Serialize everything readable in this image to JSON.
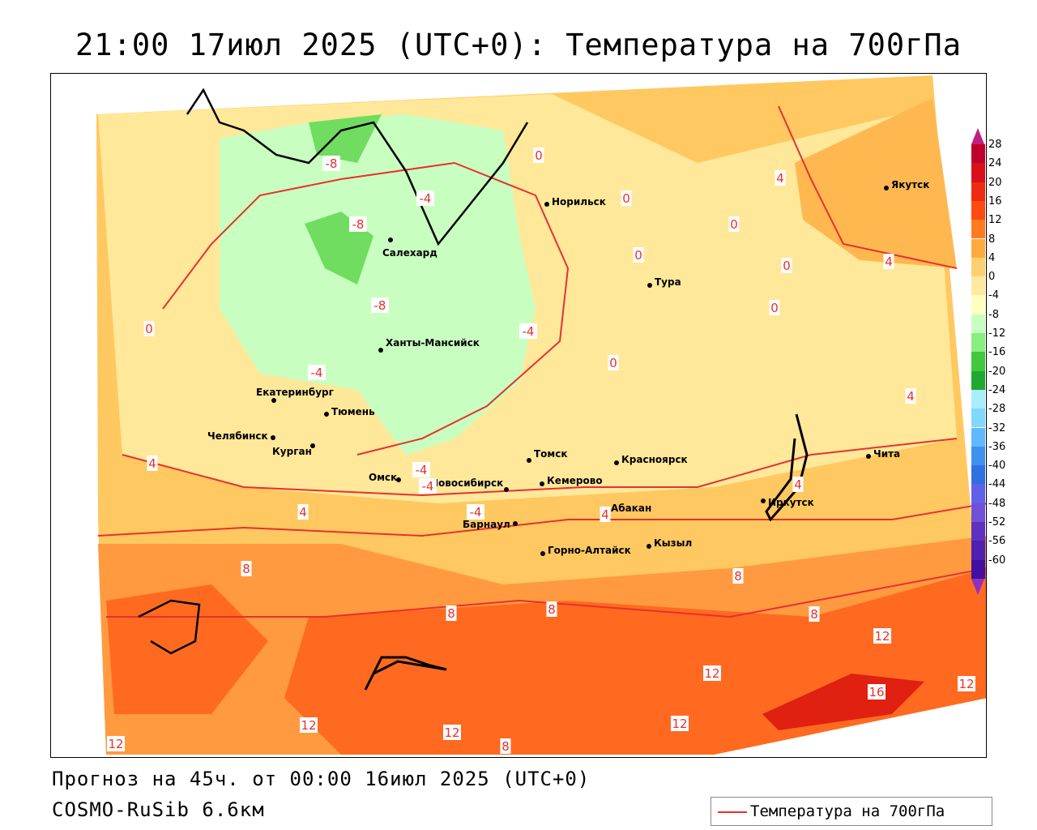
{
  "title": "21:00 17июл 2025 (UTC+0): Температура на 700гПа",
  "footer": {
    "forecast": "Прогноз на 45ч. от 00:00 16июл 2025 (UTC+0)",
    "model": "COSMO-RuSib 6.6км"
  },
  "legend": {
    "label": "Температура на 700гПа",
    "line_color": "#e83030"
  },
  "colorbar": {
    "labels": [
      "28",
      "24",
      "20",
      "16",
      "12",
      "8",
      "4",
      "0",
      "-4",
      "-8",
      "-12",
      "-16",
      "-20",
      "-24",
      "-28",
      "-32",
      "-36",
      "-40",
      "-44",
      "-48",
      "-52",
      "-56",
      "-60"
    ],
    "colors": [
      "#c0002a",
      "#d8101a",
      "#ee2a10",
      "#ff4a10",
      "#ff7a20",
      "#ffaa40",
      "#ffd070",
      "#ffe9a0",
      "#ffffc0",
      "#c8ffc0",
      "#88ee80",
      "#40c840",
      "#20a830",
      "#a8eeff",
      "#80d8ff",
      "#60b8ff",
      "#4090f0",
      "#3070e0",
      "#6060e8",
      "#7050d8",
      "#6030c0",
      "#5020b0",
      "#4010a0"
    ],
    "top_cap_color": "#c02080",
    "bottom_cap_color": "#9030c0"
  },
  "cities": [
    {
      "name": "Якутск"
    },
    {
      "name": "Норильск"
    },
    {
      "name": "Салехард"
    },
    {
      "name": "Тура"
    },
    {
      "name": "Ханты-Мансийск"
    },
    {
      "name": "Екатеринбург"
    },
    {
      "name": "Тюмень"
    },
    {
      "name": "Челябинск"
    },
    {
      "name": "Курган"
    },
    {
      "name": "Омск"
    },
    {
      "name": "Новосибирск"
    },
    {
      "name": "Томск"
    },
    {
      "name": "Красноярск"
    },
    {
      "name": "Кемерово"
    },
    {
      "name": "Барнаул"
    },
    {
      "name": "Абакан"
    },
    {
      "name": "Горно-Алтайск"
    },
    {
      "name": "Кызыл"
    },
    {
      "name": "Иркутск"
    },
    {
      "name": "Чита"
    }
  ],
  "isolines": [
    "-8",
    "-8",
    "-4",
    "-8",
    "0",
    "0",
    "0",
    "0",
    "4",
    "4",
    "0",
    "0",
    "-4",
    "-4",
    "0",
    "-4",
    "0",
    "4",
    "-4",
    "-4",
    "4",
    "4",
    "4",
    "8",
    "8",
    "8",
    "8",
    "4",
    "8",
    "12",
    "12",
    "16",
    "12",
    "12",
    "12",
    "12",
    "8",
    "12"
  ]
}
